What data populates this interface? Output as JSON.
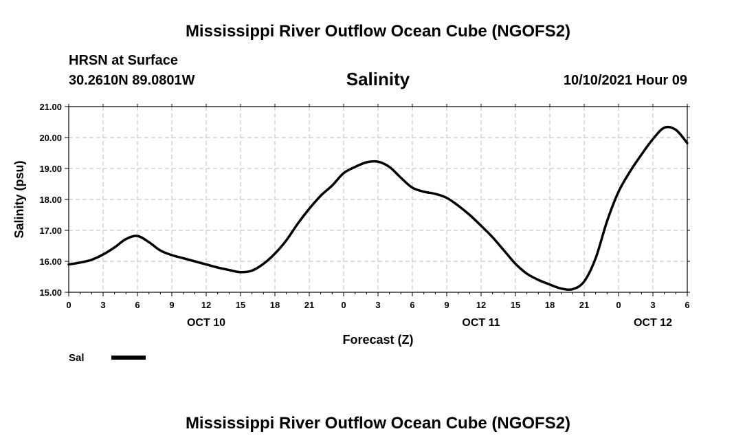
{
  "header": {
    "title": "Mississippi River Outflow Ocean Cube (NGOFS2)",
    "station": "HRSN at Surface",
    "coords": "30.2610N  89.0801W",
    "date": "10/10/2021 Hour 09"
  },
  "footer": {
    "title": "Mississippi River Outflow Ocean Cube (NGOFS2)"
  },
  "chart_data": {
    "type": "line",
    "title": "Salinity",
    "xlabel": "Forecast (Z)",
    "ylabel": "Salinity (psu)",
    "ylim": [
      15.0,
      21.0
    ],
    "yticks": [
      "15.00",
      "16.00",
      "17.00",
      "18.00",
      "19.00",
      "20.00",
      "21.00"
    ],
    "xlim": [
      "2021-10-10T00Z",
      "2021-10-12T06Z"
    ],
    "xtick_labels": [
      "0",
      "3",
      "6",
      "9",
      "12",
      "15",
      "18",
      "21",
      "0",
      "3",
      "6",
      "9",
      "12",
      "15",
      "18",
      "21",
      "0",
      "3",
      "6"
    ],
    "day_labels": [
      {
        "label": "OCT 10",
        "at": "2021-10-10T12Z"
      },
      {
        "label": "OCT 11",
        "at": "2021-10-11T12Z"
      },
      {
        "label": "OCT 12",
        "at": "2021-10-12T03Z"
      }
    ],
    "grid": true,
    "legend": "bottom-left",
    "series": [
      {
        "name": "Sal",
        "color": "#000000",
        "x": [
          "2021-10-10T00Z",
          "2021-10-10T01Z",
          "2021-10-10T02Z",
          "2021-10-10T03Z",
          "2021-10-10T04Z",
          "2021-10-10T05Z",
          "2021-10-10T06Z",
          "2021-10-10T07Z",
          "2021-10-10T08Z",
          "2021-10-10T09Z",
          "2021-10-10T10Z",
          "2021-10-10T11Z",
          "2021-10-10T12Z",
          "2021-10-10T13Z",
          "2021-10-10T14Z",
          "2021-10-10T15Z",
          "2021-10-10T16Z",
          "2021-10-10T17Z",
          "2021-10-10T18Z",
          "2021-10-10T19Z",
          "2021-10-10T20Z",
          "2021-10-10T21Z",
          "2021-10-10T22Z",
          "2021-10-10T23Z",
          "2021-10-11T00Z",
          "2021-10-11T01Z",
          "2021-10-11T02Z",
          "2021-10-11T03Z",
          "2021-10-11T04Z",
          "2021-10-11T05Z",
          "2021-10-11T06Z",
          "2021-10-11T07Z",
          "2021-10-11T08Z",
          "2021-10-11T09Z",
          "2021-10-11T10Z",
          "2021-10-11T11Z",
          "2021-10-11T12Z",
          "2021-10-11T13Z",
          "2021-10-11T14Z",
          "2021-10-11T15Z",
          "2021-10-11T16Z",
          "2021-10-11T17Z",
          "2021-10-11T18Z",
          "2021-10-11T19Z",
          "2021-10-11T20Z",
          "2021-10-11T21Z",
          "2021-10-11T22Z",
          "2021-10-11T23Z",
          "2021-10-12T00Z",
          "2021-10-12T01Z",
          "2021-10-12T02Z",
          "2021-10-12T03Z",
          "2021-10-12T04Z",
          "2021-10-12T05Z",
          "2021-10-12T06Z"
        ],
        "values": [
          15.9,
          15.96,
          16.05,
          16.22,
          16.45,
          16.72,
          16.82,
          16.62,
          16.35,
          16.2,
          16.1,
          16.0,
          15.9,
          15.8,
          15.72,
          15.65,
          15.7,
          15.92,
          16.25,
          16.68,
          17.22,
          17.7,
          18.12,
          18.45,
          18.85,
          19.05,
          19.2,
          19.22,
          19.05,
          18.7,
          18.38,
          18.25,
          18.18,
          18.05,
          17.8,
          17.5,
          17.15,
          16.78,
          16.35,
          15.92,
          15.6,
          15.4,
          15.25,
          15.12,
          15.1,
          15.35,
          16.1,
          17.3,
          18.25,
          18.9,
          19.45,
          19.95,
          20.32,
          20.25,
          19.82
        ]
      }
    ]
  }
}
